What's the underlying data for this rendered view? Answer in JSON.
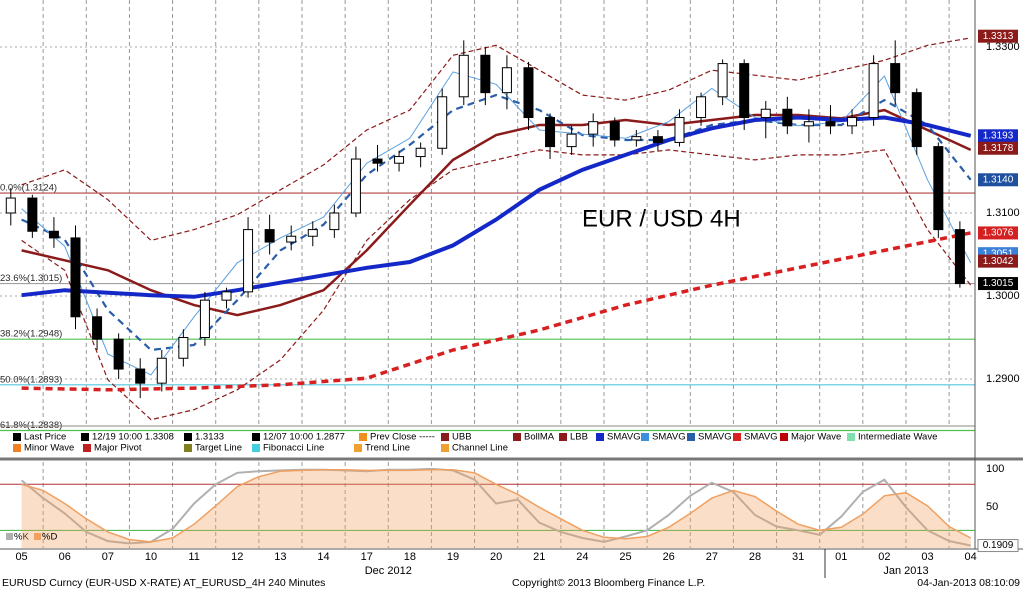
{
  "chart_data": [
    {
      "type": "candlestick",
      "annotation": "EUR / USD 4H",
      "annotation_color": "#d42020",
      "x": [
        -0.25,
        0.25,
        0.75,
        1.25,
        1.75,
        2.25,
        2.75,
        3.25,
        3.75,
        4.25,
        4.75,
        5.25,
        5.75,
        6.25,
        6.75,
        7.25,
        7.75,
        8.25,
        8.75,
        9.25,
        9.75,
        10.25,
        10.75,
        11.25,
        11.75,
        12.25,
        12.75,
        13.25,
        13.75,
        14.25,
        14.75,
        15.25,
        15.75,
        16.25,
        16.75,
        17.25,
        17.75,
        18.25,
        18.75,
        19.25,
        19.75,
        20.25,
        20.75,
        21.25,
        21.75
      ],
      "open": [
        1.31,
        1.3118,
        1.3078,
        1.307,
        1.2975,
        1.2948,
        1.2912,
        1.2895,
        1.2925,
        1.295,
        1.2995,
        1.3005,
        1.308,
        1.3065,
        1.3072,
        1.308,
        1.31,
        1.3165,
        1.316,
        1.3168,
        1.3178,
        1.324,
        1.329,
        1.3245,
        1.3275,
        1.3215,
        1.318,
        1.3195,
        1.321,
        1.3188,
        1.3192,
        1.3185,
        1.3215,
        1.324,
        1.328,
        1.3215,
        1.3225,
        1.3205,
        1.321,
        1.3205,
        1.3215,
        1.328,
        1.3245,
        1.318,
        1.308
      ],
      "high": [
        1.313,
        1.3122,
        1.3095,
        1.3085,
        1.2985,
        1.2955,
        1.2925,
        1.2935,
        1.296,
        1.3005,
        1.301,
        1.3095,
        1.3098,
        1.3085,
        1.309,
        1.311,
        1.318,
        1.3182,
        1.3175,
        1.3185,
        1.325,
        1.3308,
        1.33,
        1.329,
        1.3282,
        1.322,
        1.3205,
        1.322,
        1.3215,
        1.32,
        1.32,
        1.3225,
        1.3245,
        1.3285,
        1.3285,
        1.3235,
        1.324,
        1.3225,
        1.323,
        1.3225,
        1.329,
        1.3308,
        1.325,
        1.3185,
        1.309
      ],
      "low": [
        1.3085,
        1.307,
        1.3058,
        1.296,
        1.2935,
        1.29,
        1.2877,
        1.2885,
        1.2915,
        1.294,
        1.2985,
        1.2998,
        1.305,
        1.3055,
        1.306,
        1.307,
        1.3095,
        1.315,
        1.315,
        1.3155,
        1.317,
        1.323,
        1.323,
        1.3225,
        1.32,
        1.3165,
        1.317,
        1.318,
        1.318,
        1.318,
        1.3175,
        1.318,
        1.3205,
        1.323,
        1.32,
        1.319,
        1.3195,
        1.3185,
        1.3195,
        1.3195,
        1.3205,
        1.323,
        1.317,
        1.307,
        1.301
      ],
      "close": [
        1.3118,
        1.3078,
        1.307,
        1.2975,
        1.2948,
        1.2912,
        1.2895,
        1.2925,
        1.295,
        1.2995,
        1.3005,
        1.308,
        1.3065,
        1.3072,
        1.308,
        1.31,
        1.3165,
        1.316,
        1.3168,
        1.3178,
        1.324,
        1.329,
        1.3245,
        1.3275,
        1.3215,
        1.318,
        1.3195,
        1.321,
        1.3188,
        1.3192,
        1.3185,
        1.3215,
        1.324,
        1.328,
        1.3215,
        1.3225,
        1.3205,
        1.321,
        1.3205,
        1.3215,
        1.328,
        1.3245,
        1.318,
        1.308,
        1.3015
      ],
      "xlim": [
        -0.5,
        22.1
      ],
      "xticks": [
        {
          "value": 0,
          "label": "05"
        },
        {
          "value": 1,
          "label": "06"
        },
        {
          "value": 2,
          "label": "07"
        },
        {
          "value": 3,
          "label": "10"
        },
        {
          "value": 4,
          "label": "11"
        },
        {
          "value": 5,
          "label": "12"
        },
        {
          "value": 6,
          "label": "13"
        },
        {
          "value": 7,
          "label": "14"
        },
        {
          "value": 8,
          "label": "17"
        },
        {
          "value": 9,
          "label": "18"
        },
        {
          "value": 10,
          "label": "19"
        },
        {
          "value": 11,
          "label": "20"
        },
        {
          "value": 12,
          "label": "21"
        },
        {
          "value": 13,
          "label": "24"
        },
        {
          "value": 14,
          "label": "25"
        },
        {
          "value": 15,
          "label": "26"
        },
        {
          "value": 16,
          "label": "27"
        },
        {
          "value": 17,
          "label": "28"
        },
        {
          "value": 18,
          "label": "31"
        },
        {
          "value": 19,
          "label": "01"
        },
        {
          "value": 20,
          "label": "02"
        },
        {
          "value": 21,
          "label": "03"
        },
        {
          "value": 22,
          "label": "04"
        }
      ],
      "month_labels": [
        {
          "value": 8.5,
          "label": "Dec 2012"
        },
        {
          "value": 20.5,
          "label": "Jan 2013"
        }
      ],
      "ylim": [
        1.28446,
        1.33566
      ],
      "yticks": [
        {
          "value": 1.29,
          "label": "1.2900"
        },
        {
          "value": 1.3,
          "label": "1.3000"
        },
        {
          "value": 1.31,
          "label": "1.3100"
        },
        {
          "value": 1.33,
          "label": "1.3300"
        }
      ],
      "grid": true,
      "overlays": [
        {
          "color": "#8b1a1a",
          "style": "dashed",
          "width": 1.2,
          "x": [
            0,
            1,
            2,
            3,
            4,
            5,
            6,
            7,
            8,
            9,
            10,
            11,
            12,
            13,
            14,
            15,
            16,
            17,
            18,
            19,
            20,
            21,
            22
          ],
          "values": [
            1.3134,
            1.3152,
            1.3116,
            1.3067,
            1.308,
            1.3098,
            1.3128,
            1.3158,
            1.32,
            1.3224,
            1.329,
            1.3302,
            1.3272,
            1.3242,
            1.3236,
            1.3248,
            1.3272,
            1.3266,
            1.326,
            1.3272,
            1.3284,
            1.3302,
            1.3311
          ]
        },
        {
          "color": "#8b1a1a",
          "style": "dashed",
          "width": 1.2,
          "x": [
            0,
            1,
            2,
            3,
            4,
            5,
            6,
            7,
            8,
            9,
            10,
            11,
            12,
            13,
            14,
            15,
            16,
            17,
            18,
            19,
            20,
            21,
            22
          ],
          "values": [
            1.3067,
            1.3031,
            1.2899,
            1.2851,
            1.2863,
            1.2887,
            1.2923,
            1.2983,
            1.3067,
            1.3116,
            1.3152,
            1.3164,
            1.3176,
            1.317,
            1.317,
            1.3176,
            1.317,
            1.3164,
            1.317,
            1.317,
            1.3176,
            1.308,
            1.3013
          ]
        },
        {
          "color": "#8b1a1a",
          "style": "solid",
          "width": 2.5,
          "x": [
            0,
            1,
            2,
            3,
            4,
            5,
            6,
            7,
            8,
            9,
            10,
            11,
            12,
            13,
            14,
            15,
            16,
            17,
            18,
            19,
            20,
            21,
            22
          ],
          "values": [
            1.3055,
            1.3043,
            1.3031,
            1.3007,
            1.2989,
            1.2977,
            1.2989,
            1.3007,
            1.3055,
            1.311,
            1.3164,
            1.3194,
            1.3206,
            1.3206,
            1.3212,
            1.3206,
            1.3212,
            1.3218,
            1.3218,
            1.3214,
            1.3224,
            1.32,
            1.3176
          ]
        },
        {
          "color": "#d82020",
          "style": "dashed",
          "width": 3.5,
          "x": [
            0,
            2,
            4,
            6,
            8,
            10,
            12,
            14,
            16,
            18,
            20,
            22
          ],
          "values": [
            1.2889,
            1.2887,
            1.2889,
            1.2893,
            1.2901,
            1.2935,
            1.2959,
            1.2989,
            1.3013,
            1.3034,
            1.3055,
            1.3076
          ]
        },
        {
          "color": "#2a5ea8",
          "style": "dashed",
          "width": 2.2,
          "x": [
            0,
            1,
            2,
            3,
            4,
            5,
            6,
            7,
            8,
            9,
            10,
            11,
            12,
            13,
            14,
            15,
            16,
            17,
            18,
            19,
            20,
            21,
            22
          ],
          "values": [
            1.3092,
            1.3068,
            1.2983,
            1.2935,
            1.2941,
            1.2995,
            1.3055,
            1.3086,
            1.3146,
            1.3182,
            1.3224,
            1.3242,
            1.3224,
            1.3194,
            1.3188,
            1.3188,
            1.3206,
            1.3212,
            1.3206,
            1.3206,
            1.3236,
            1.3206,
            1.314
          ]
        },
        {
          "color": "#5aa0e0",
          "style": "solid",
          "width": 1,
          "x": [
            0,
            1,
            2,
            3,
            4,
            5,
            6,
            7,
            8,
            9,
            10,
            11,
            12,
            13,
            14,
            15,
            16,
            17,
            18,
            19,
            20,
            21,
            22
          ],
          "values": [
            1.3105,
            1.306,
            1.293,
            1.2905,
            1.2975,
            1.304,
            1.307,
            1.3095,
            1.316,
            1.319,
            1.327,
            1.3255,
            1.32,
            1.3195,
            1.319,
            1.321,
            1.325,
            1.3215,
            1.3205,
            1.321,
            1.3265,
            1.314,
            1.304
          ]
        },
        {
          "color": "#1428c8",
          "style": "solid",
          "width": 4,
          "x": [
            0,
            1,
            2,
            3,
            4,
            5,
            6,
            7,
            8,
            9,
            10,
            11,
            12,
            13,
            14,
            15,
            16,
            17,
            18,
            19,
            20,
            21,
            22
          ],
          "values": [
            1.3001,
            1.3007,
            1.3004,
            1.3001,
            1.2999,
            1.3007,
            1.3016,
            1.3025,
            1.3034,
            1.3041,
            1.3061,
            1.3092,
            1.3128,
            1.3152,
            1.317,
            1.3188,
            1.3202,
            1.3212,
            1.3215,
            1.3212,
            1.3215,
            1.3206,
            1.3193
          ]
        }
      ],
      "levels": [
        {
          "value": 1.3124,
          "label": "0.0%(1.3124)",
          "color": "#b04040"
        },
        {
          "value": 1.3015,
          "label": "23.6%(1.3015)",
          "color": "#a0a0a0"
        },
        {
          "value": 1.2948,
          "label": "38.2%(1.2948)",
          "color": "#50c050"
        },
        {
          "value": 1.2893,
          "label": "50.0%(1.2893)",
          "color": "#50c8e0"
        },
        {
          "value": 1.2838,
          "label": "61.8%(1.2838)",
          "color": "#50c050"
        }
      ],
      "tags": [
        {
          "value": 1.3313,
          "label": "1.3313",
          "color": "#8b1a1a"
        },
        {
          "value": 1.3193,
          "label": "1.3193",
          "color": "#1428c8"
        },
        {
          "value": 1.3178,
          "label": "1.3178",
          "color": "#8b1a1a"
        },
        {
          "value": 1.314,
          "label": "1.3140",
          "color": "#1f4f9f"
        },
        {
          "value": 1.3076,
          "label": "1.3076",
          "color": "#d42020"
        },
        {
          "value": 1.3051,
          "label": "1.3051",
          "color": "#3a7fd8"
        },
        {
          "value": 1.3042,
          "label": "1.3042",
          "color": "#8b1a1a"
        },
        {
          "value": 1.3015,
          "label": "1.3015",
          "color": "#000000"
        }
      ],
      "legend": [
        {
          "label": "Last Price",
          "color": "#000000"
        },
        {
          "label": "12/19 10:00 1.3308",
          "color": "#000000"
        },
        {
          "label": "1.3133",
          "color": "#000000"
        },
        {
          "label": "12/07 10:00 1.2877",
          "color": "#000000"
        },
        {
          "label": "Prev Close -----",
          "color": "#f09020"
        },
        {
          "label": "UBB",
          "color": "#8b1a1a"
        },
        {
          "label": "BollMA",
          "color": "#8b1a1a"
        },
        {
          "label": "LBB",
          "color": "#8b1a1a"
        },
        {
          "label": "SMAVG",
          "color": "#1428c8"
        },
        {
          "label": "SMAVG",
          "color": "#3b8fdf"
        },
        {
          "label": "SMAVG",
          "color": "#2a5ea8"
        },
        {
          "label": "SMAVG",
          "color": "#d82020"
        },
        {
          "label": "Major Wave",
          "color": "#c00000"
        },
        {
          "label": "Intermediate Wave",
          "color": "#80e0b0"
        },
        {
          "label": "Minor Wave",
          "color": "#f08020"
        },
        {
          "label": "Major Pivot",
          "color": "#c02020"
        },
        {
          "label": "Target Line",
          "color": "#808020"
        },
        {
          "label": "Fibonacci Line",
          "color": "#40d0e0"
        },
        {
          "label": "Trend Line",
          "color": "#f0a030"
        },
        {
          "label": "Channel Line",
          "color": "#f0a030"
        }
      ]
    },
    {
      "type": "stochastic",
      "x": [
        0,
        0.5,
        1,
        1.5,
        2,
        2.5,
        3,
        3.5,
        4,
        4.5,
        5,
        5.5,
        6,
        6.5,
        7,
        7.5,
        8,
        8.5,
        9,
        9.5,
        10,
        10.5,
        11,
        11.5,
        12,
        12.5,
        13,
        13.5,
        14,
        14.5,
        15,
        15.5,
        16,
        16.5,
        17,
        17.5,
        18,
        18.5,
        19,
        19.5,
        20,
        20.5,
        21,
        21.5,
        22
      ],
      "series": [
        {
          "name": "%K",
          "color": "#b0b0b0",
          "values": [
            85,
            62,
            42,
            18,
            6,
            3,
            5,
            22,
            55,
            80,
            95,
            97,
            98,
            99,
            99,
            98,
            97,
            99,
            99,
            100,
            98,
            86,
            55,
            60,
            30,
            18,
            10,
            5,
            12,
            20,
            40,
            65,
            82,
            70,
            40,
            25,
            20,
            14,
            38,
            70,
            86,
            50,
            20,
            6,
            0.1909
          ]
        },
        {
          "name": "%D",
          "color": "#f0a060",
          "values": [
            80,
            72,
            55,
            35,
            18,
            8,
            5,
            10,
            28,
            52,
            77,
            90,
            97,
            98,
            99,
            99,
            98,
            98,
            98,
            99,
            99,
            95,
            80,
            67,
            50,
            35,
            20,
            11,
            9,
            12,
            24,
            42,
            62,
            72,
            64,
            45,
            28,
            20,
            24,
            41,
            65,
            69,
            52,
            25,
            10
          ]
        }
      ],
      "xlim": [
        -0.5,
        22.1
      ],
      "ylim": [
        -3,
        109
      ],
      "yticks": [
        50,
        100
      ],
      "levels": [
        {
          "value": 80,
          "color": "#b03030"
        },
        {
          "value": 20,
          "color": "#40b040"
        }
      ],
      "tag": {
        "value": 0.1909,
        "label": "0.1909"
      }
    }
  ],
  "footer": {
    "left": "EURUSD Curncy (EUR-USD X-RATE) AT_EURUSD_4H  240 Minutes",
    "center": "Copyright© 2013 Bloomberg Finance L.P.",
    "right": "04-Jan-2013 08:10:09"
  }
}
